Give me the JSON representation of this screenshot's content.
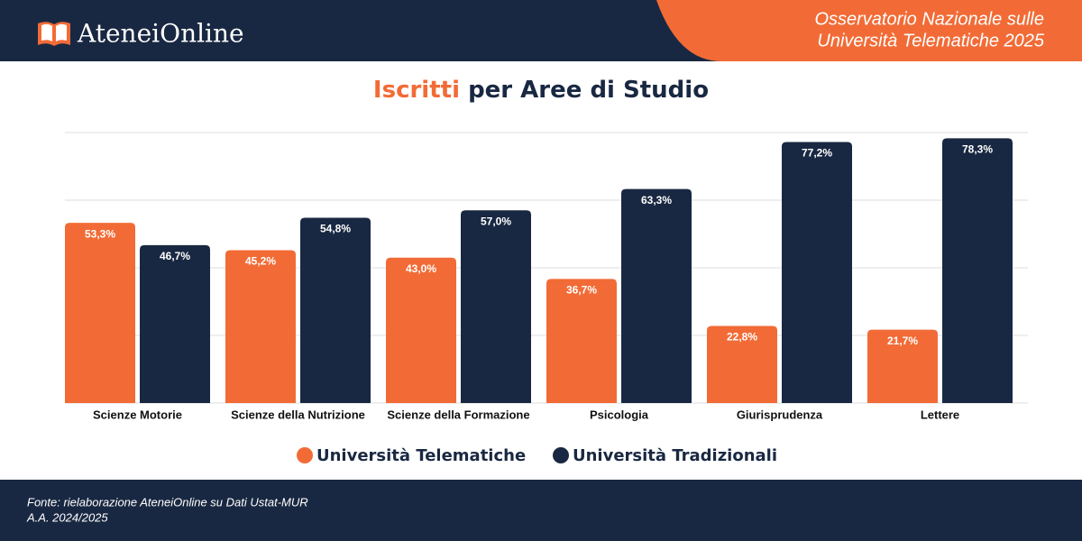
{
  "header": {
    "logo": "AteneiOnline",
    "subtitle": [
      "Osservatorio Nazionale sulle",
      "Università Telematiche 2025"
    ]
  },
  "chart_data": {
    "type": "bar",
    "title": [
      "Iscritti",
      "per Aree di Studio"
    ],
    "categories": [
      "Scienze Motorie",
      "Scienze della Nutrizione",
      "Scienze della Formazione",
      "Psicologia",
      "Giurisprudenza",
      "Lettere"
    ],
    "series": [
      {
        "name": "Università Telematiche",
        "color": "#f26b36",
        "values": [
          53.3,
          45.2,
          43.0,
          36.7,
          22.8,
          21.7
        ],
        "value_labels": [
          "53,3%",
          "45,2%",
          "43,0%",
          "36,7%",
          "22,8%",
          "21,7%"
        ]
      },
      {
        "name": "Università Tradizionali",
        "color": "#192842",
        "values": [
          46.7,
          54.8,
          57.0,
          63.3,
          77.2,
          78.3
        ],
        "value_labels": [
          "46,7%",
          "54,8%",
          "57,0%",
          "63,3%",
          "77,2%",
          "78,3%"
        ]
      }
    ],
    "ylim": [
      0,
      80
    ],
    "yticks": [
      0,
      20,
      40,
      60,
      80
    ],
    "grid": true
  },
  "footer": {
    "source": "Fonte: rielaborazione AteneiOnline su Dati Ustat-MUR",
    "period": "A.A. 2024/2025"
  }
}
